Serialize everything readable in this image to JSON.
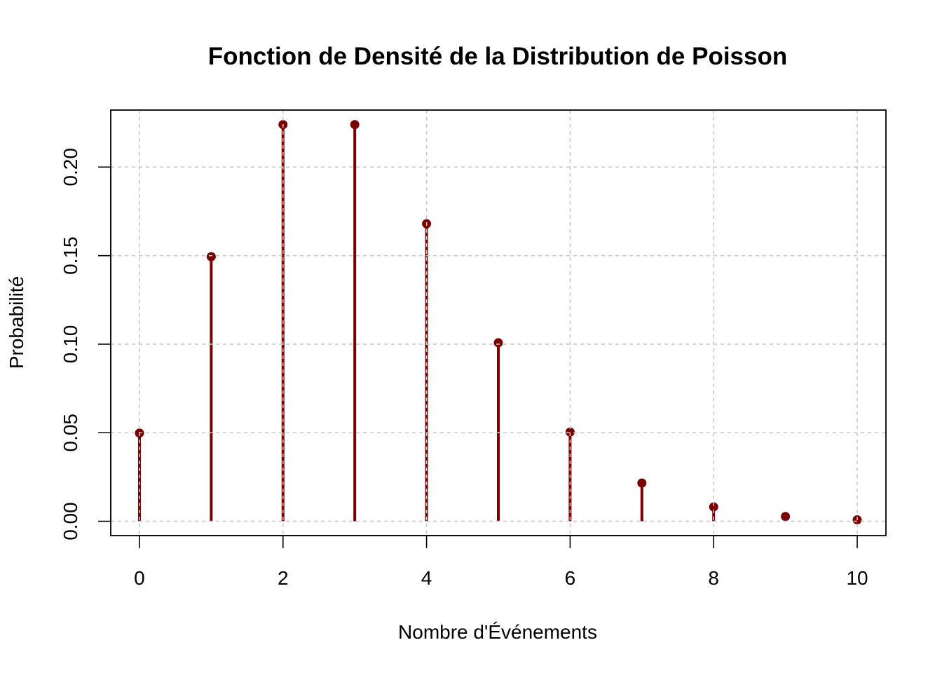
{
  "chart_data": {
    "type": "scatter",
    "title": "Fonction de Densité de la Distribution de Poisson",
    "xlabel": "Nombre d'Événements",
    "ylabel": "Probabilité",
    "xlim": [
      -0.4,
      10.4
    ],
    "ylim": [
      -0.0081,
      0.2322
    ],
    "x_ticks": [
      0,
      2,
      4,
      6,
      8,
      10
    ],
    "x_tick_labels": [
      "0",
      "2",
      "4",
      "6",
      "8",
      "10"
    ],
    "y_ticks": [
      0.0,
      0.05,
      0.1,
      0.15,
      0.2
    ],
    "y_tick_labels": [
      "0.00",
      "0.05",
      "0.10",
      "0.15",
      "0.20"
    ],
    "grid": true,
    "series": [
      {
        "x": [
          0,
          1,
          2,
          3,
          4,
          5,
          6,
          7,
          8,
          9,
          10
        ],
        "values": [
          0.0498,
          0.1494,
          0.224,
          0.224,
          0.168,
          0.1008,
          0.0504,
          0.0216,
          0.0081,
          0.0027,
          0.0008
        ]
      }
    ],
    "colors": {
      "stem": "#7a0000",
      "grid": "#c8c8c8"
    }
  }
}
